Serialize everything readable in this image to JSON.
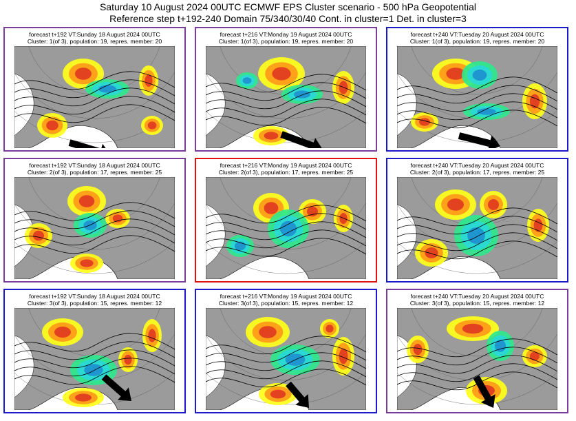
{
  "header": {
    "title_line1": "Saturday 10 August 2024 00UTC ECMWF EPS Cluster scenario - 500 hPa Geopotential",
    "title_line2": "Reference step t+192-240 Domain 75/340/30/40 Cont. in cluster=1 Det. in cluster=3"
  },
  "colors": {
    "purple": "#7a3c9a",
    "blue": "#1a1ac8",
    "red": "#e01010",
    "land": "#9b9b9b",
    "ridge_red": "#e03a1f",
    "ridge_orange": "#ff9a1a",
    "ridge_yellow": "#ffff1a",
    "trough_green": "#2ee88c",
    "trough_cyan": "#28d8d8",
    "trough_blue": "#2090d0",
    "arrow": "#000000"
  },
  "panels": [
    {
      "id": "p11",
      "line1": "forecast t+192 VT:Sunday 18 August 2024 00UTC",
      "line2": "Cluster: 1(of 3), population: 19, repres. member: 20",
      "border": "purple",
      "arrow": true
    },
    {
      "id": "p12",
      "line1": "forecast t+216 VT:Monday 19 August 2024 00UTC",
      "line2": "Cluster: 1(of 3), population: 19, repres. member: 20",
      "border": "purple",
      "arrow": true
    },
    {
      "id": "p13",
      "line1": "forecast t+240 VT:Tuesday 20 August 2024 00UTC",
      "line2": "Cluster: 1(of 3), population: 19, repres. member: 20",
      "border": "blue",
      "arrow": true
    },
    {
      "id": "p21",
      "line1": "forecast t+192 VT:Sunday 18 August 2024 00UTC",
      "line2": "Cluster: 2(of 3), population: 17, repres. member: 25",
      "border": "purple",
      "arrow": false
    },
    {
      "id": "p22",
      "line1": "forecast t+216 VT:Monday 19 August 2024 00UTC",
      "line2": "Cluster: 2(of 3), population: 17, repres. member: 25",
      "border": "red",
      "arrow": false
    },
    {
      "id": "p23",
      "line1": "forecast t+240 VT:Tuesday 20 August 2024 00UTC",
      "line2": "Cluster: 2(of 3), population: 17, repres. member: 25",
      "border": "blue",
      "arrow": false
    },
    {
      "id": "p31",
      "line1": "forecast t+192 VT:Sunday 18 August 2024 00UTC",
      "line2": "Cluster: 3(of 3), population: 15, repres. member: 12",
      "border": "blue",
      "arrow": true
    },
    {
      "id": "p32",
      "line1": "forecast t+216 VT:Monday 19 August 2024 00UTC",
      "line2": "Cluster: 3(of 3), population: 15, repres. member: 12",
      "border": "blue",
      "arrow": true
    },
    {
      "id": "p33",
      "line1": "forecast t+240 VT:Tuesday 20 August 2024 00UTC",
      "line2": "Cluster: 3(of 3), population: 15, repres. member: 12",
      "border": "purple",
      "arrow": true
    }
  ]
}
